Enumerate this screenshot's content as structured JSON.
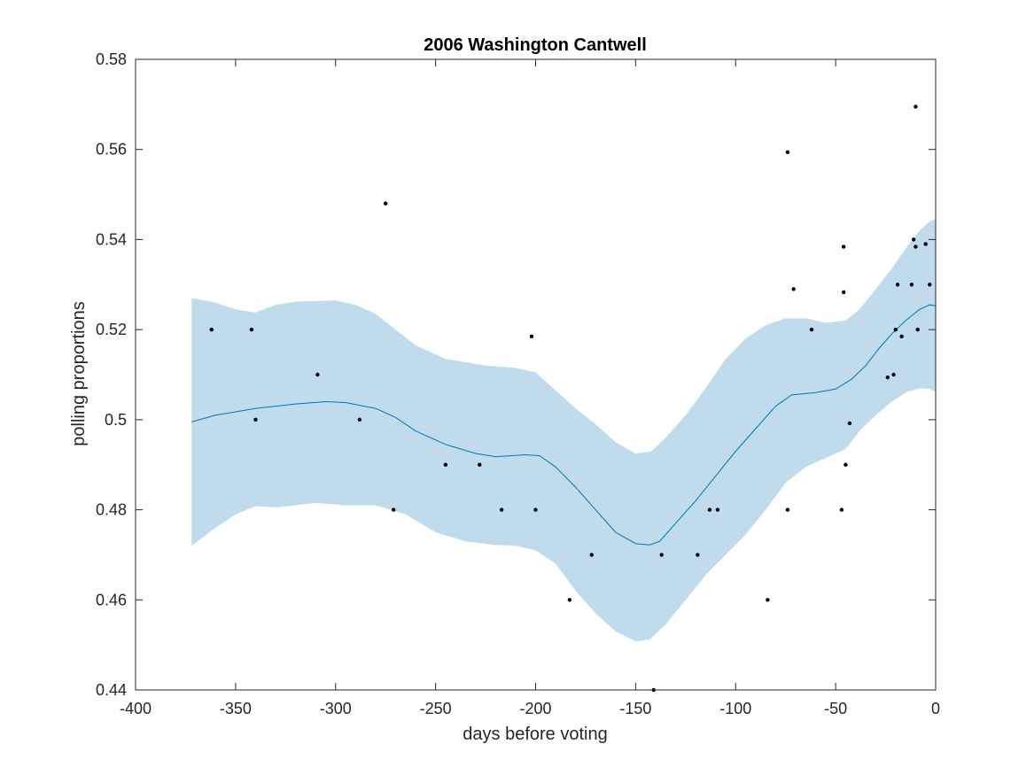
{
  "chart_data": {
    "type": "scatter",
    "title": "2006 Washington Cantwell",
    "xlabel": "days before voting",
    "ylabel": "polling proportions",
    "xlim": [
      -400,
      0
    ],
    "ylim": [
      0.44,
      0.58
    ],
    "xticks": [
      -400,
      -350,
      -300,
      -250,
      -200,
      -150,
      -100,
      -50,
      0
    ],
    "xtick_labels": [
      "-400",
      "-350",
      "-300",
      "-250",
      "-200",
      "-150",
      "-100",
      "-50",
      "0"
    ],
    "yticks": [
      0.44,
      0.46,
      0.48,
      0.5,
      0.52,
      0.54,
      0.56,
      0.58
    ],
    "ytick_labels": [
      "0.44",
      "0.46",
      "0.48",
      "0.5",
      "0.52",
      "0.54",
      "0.56",
      "0.58"
    ],
    "grid": false,
    "colors": {
      "band": "#c0dcec",
      "line": "#0072bd",
      "points": "#000000"
    },
    "points": [
      {
        "x": -362,
        "y": 0.52
      },
      {
        "x": -342,
        "y": 0.52
      },
      {
        "x": -340,
        "y": 0.5
      },
      {
        "x": -309,
        "y": 0.51
      },
      {
        "x": -288,
        "y": 0.5
      },
      {
        "x": -275,
        "y": 0.548
      },
      {
        "x": -271,
        "y": 0.48
      },
      {
        "x": -245,
        "y": 0.49
      },
      {
        "x": -228,
        "y": 0.49
      },
      {
        "x": -217,
        "y": 0.48
      },
      {
        "x": -202,
        "y": 0.5185
      },
      {
        "x": -200,
        "y": 0.48
      },
      {
        "x": -183,
        "y": 0.46
      },
      {
        "x": -172,
        "y": 0.47
      },
      {
        "x": -141,
        "y": 0.44
      },
      {
        "x": -137,
        "y": 0.47
      },
      {
        "x": -119,
        "y": 0.47
      },
      {
        "x": -113,
        "y": 0.48
      },
      {
        "x": -109,
        "y": 0.48
      },
      {
        "x": -84,
        "y": 0.46
      },
      {
        "x": -74,
        "y": 0.5594
      },
      {
        "x": -74,
        "y": 0.48
      },
      {
        "x": -71,
        "y": 0.529
      },
      {
        "x": -62,
        "y": 0.52
      },
      {
        "x": -47,
        "y": 0.48
      },
      {
        "x": -46,
        "y": 0.5384
      },
      {
        "x": -46,
        "y": 0.5283
      },
      {
        "x": -45,
        "y": 0.49
      },
      {
        "x": -43,
        "y": 0.4992
      },
      {
        "x": -24,
        "y": 0.5094
      },
      {
        "x": -21,
        "y": 0.51
      },
      {
        "x": -20,
        "y": 0.52
      },
      {
        "x": -19,
        "y": 0.53
      },
      {
        "x": -17,
        "y": 0.5185
      },
      {
        "x": -12,
        "y": 0.53
      },
      {
        "x": -11,
        "y": 0.54
      },
      {
        "x": -10,
        "y": 0.5384
      },
      {
        "x": -10,
        "y": 0.5695
      },
      {
        "x": -9,
        "y": 0.52
      },
      {
        "x": -5,
        "y": 0.539
      },
      {
        "x": -3,
        "y": 0.53
      }
    ],
    "mean_curve": [
      [
        -372,
        0.4995
      ],
      [
        -360,
        0.501
      ],
      [
        -340,
        0.5025
      ],
      [
        -320,
        0.5035
      ],
      [
        -305,
        0.504
      ],
      [
        -295,
        0.5038
      ],
      [
        -280,
        0.5025
      ],
      [
        -270,
        0.5005
      ],
      [
        -260,
        0.4975
      ],
      [
        -245,
        0.4945
      ],
      [
        -230,
        0.4925
      ],
      [
        -220,
        0.4918
      ],
      [
        -205,
        0.4922
      ],
      [
        -198,
        0.492
      ],
      [
        -190,
        0.4895
      ],
      [
        -180,
        0.485
      ],
      [
        -170,
        0.48
      ],
      [
        -160,
        0.475
      ],
      [
        -150,
        0.4725
      ],
      [
        -143,
        0.4722
      ],
      [
        -138,
        0.473
      ],
      [
        -130,
        0.477
      ],
      [
        -120,
        0.482
      ],
      [
        -110,
        0.4875
      ],
      [
        -100,
        0.493
      ],
      [
        -90,
        0.498
      ],
      [
        -80,
        0.503
      ],
      [
        -72,
        0.5055
      ],
      [
        -60,
        0.506
      ],
      [
        -50,
        0.5068
      ],
      [
        -42,
        0.509
      ],
      [
        -35,
        0.512
      ],
      [
        -28,
        0.516
      ],
      [
        -22,
        0.519
      ],
      [
        -15,
        0.522
      ],
      [
        -8,
        0.5245
      ],
      [
        -3,
        0.5255
      ],
      [
        0,
        0.5253
      ]
    ],
    "band_upper": [
      [
        -372,
        0.527
      ],
      [
        -360,
        0.526
      ],
      [
        -350,
        0.5245
      ],
      [
        -340,
        0.5238
      ],
      [
        -330,
        0.5255
      ],
      [
        -320,
        0.5262
      ],
      [
        -300,
        0.5265
      ],
      [
        -290,
        0.5255
      ],
      [
        -280,
        0.5235
      ],
      [
        -270,
        0.52
      ],
      [
        -260,
        0.5165
      ],
      [
        -245,
        0.5135
      ],
      [
        -225,
        0.512
      ],
      [
        -210,
        0.5115
      ],
      [
        -200,
        0.5105
      ],
      [
        -190,
        0.5065
      ],
      [
        -180,
        0.5025
      ],
      [
        -170,
        0.499
      ],
      [
        -160,
        0.495
      ],
      [
        -150,
        0.4925
      ],
      [
        -142,
        0.493
      ],
      [
        -135,
        0.496
      ],
      [
        -125,
        0.501
      ],
      [
        -115,
        0.507
      ],
      [
        -105,
        0.5135
      ],
      [
        -95,
        0.518
      ],
      [
        -85,
        0.521
      ],
      [
        -75,
        0.5225
      ],
      [
        -65,
        0.5225
      ],
      [
        -55,
        0.5215
      ],
      [
        -45,
        0.522
      ],
      [
        -38,
        0.5245
      ],
      [
        -30,
        0.529
      ],
      [
        -22,
        0.5335
      ],
      [
        -15,
        0.538
      ],
      [
        -8,
        0.542
      ],
      [
        -3,
        0.544
      ],
      [
        0,
        0.5445
      ]
    ],
    "band_lower": [
      [
        -372,
        0.472
      ],
      [
        -360,
        0.476
      ],
      [
        -350,
        0.479
      ],
      [
        -340,
        0.4808
      ],
      [
        -330,
        0.4805
      ],
      [
        -310,
        0.4815
      ],
      [
        -295,
        0.481
      ],
      [
        -280,
        0.481
      ],
      [
        -265,
        0.479
      ],
      [
        -250,
        0.475
      ],
      [
        -235,
        0.473
      ],
      [
        -220,
        0.4722
      ],
      [
        -210,
        0.472
      ],
      [
        -200,
        0.471
      ],
      [
        -190,
        0.468
      ],
      [
        -180,
        0.462
      ],
      [
        -170,
        0.457
      ],
      [
        -160,
        0.453
      ],
      [
        -150,
        0.4508
      ],
      [
        -143,
        0.4512
      ],
      [
        -135,
        0.4545
      ],
      [
        -125,
        0.46
      ],
      [
        -115,
        0.4655
      ],
      [
        -105,
        0.47
      ],
      [
        -95,
        0.4745
      ],
      [
        -85,
        0.48
      ],
      [
        -75,
        0.486
      ],
      [
        -65,
        0.4895
      ],
      [
        -55,
        0.4915
      ],
      [
        -45,
        0.4935
      ],
      [
        -38,
        0.4975
      ],
      [
        -30,
        0.501
      ],
      [
        -22,
        0.504
      ],
      [
        -15,
        0.506
      ],
      [
        -8,
        0.507
      ],
      [
        -3,
        0.5068
      ],
      [
        0,
        0.5062
      ]
    ]
  }
}
